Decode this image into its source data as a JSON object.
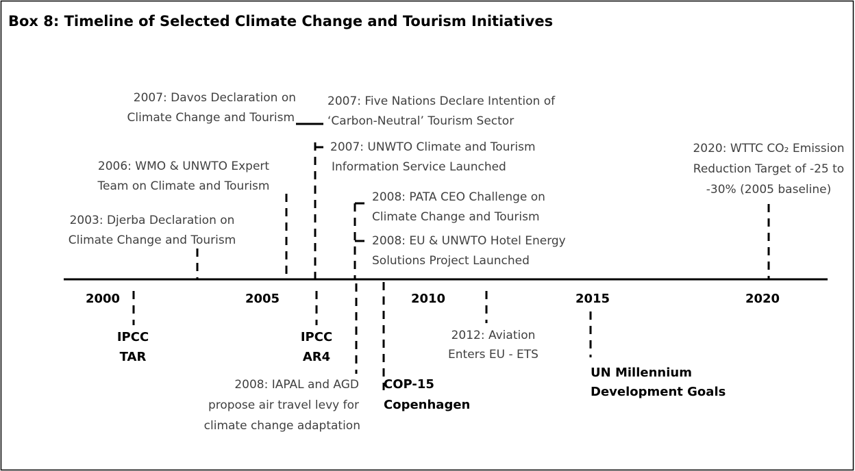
{
  "title": "Box 8: Timeline of Selected Climate Change and Tourism Initiatives",
  "years": [
    "2000",
    "2005",
    "2010",
    "2015",
    "2020"
  ],
  "events_above": [
    {
      "lines": [
        "2003: Djerba Declaration on",
        "Climate Change and Tourism"
      ]
    },
    {
      "lines": [
        "2006: WMO & UNWTO Expert",
        "Team on Climate and Tourism"
      ]
    },
    {
      "lines": [
        "2007: Davos Declaration on",
        "Climate Change and Tourism"
      ]
    },
    {
      "lines": [
        "2007: Five Nations Declare Intention of",
        "‘Carbon-Neutral’ Tourism Sector"
      ]
    },
    {
      "lines": [
        "2007: UNWTO Climate and Tourism",
        "Information Service Launched"
      ]
    },
    {
      "lines": [
        "2008: PATA CEO Challenge on",
        "Climate Change and Tourism"
      ]
    },
    {
      "lines": [
        "2008: EU & UNWTO Hotel Energy",
        "Solutions Project Launched"
      ]
    },
    {
      "lines": [
        "2020: WTTC CO₂ Emission",
        "Reduction Target of -25 to",
        "-30% (2005 baseline)"
      ]
    }
  ],
  "events_below": [
    {
      "lines": [
        "IPCC",
        "TAR"
      ]
    },
    {
      "lines": [
        "IPCC",
        "AR4"
      ]
    },
    {
      "lines": [
        "2008: IAPAL and AGD",
        "propose air travel levy for",
        "climate change adaptation"
      ]
    },
    {
      "lines": [
        "COP-15",
        "Copenhagen"
      ]
    },
    {
      "lines": [
        "2012: Aviation",
        "Enters EU - ETS"
      ]
    },
    {
      "lines": [
        "UN Millennium",
        "Development Goals"
      ]
    }
  ]
}
